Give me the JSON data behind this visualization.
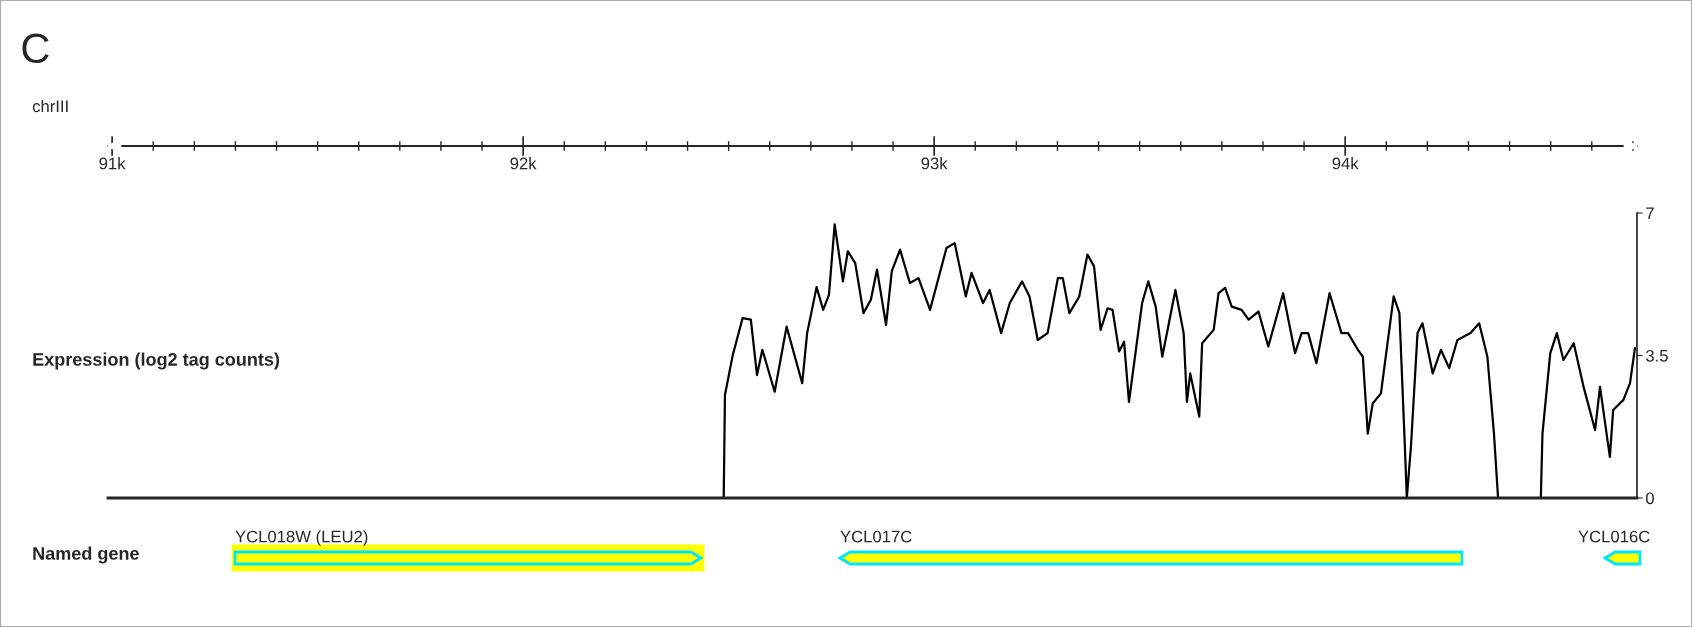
{
  "chart_data": {
    "type": "line",
    "title": "C",
    "xlabel": "chrIII",
    "ylabel": "Expression (log2 tag counts)",
    "xlim": [
      90990,
      94710
    ],
    "xticks": [
      {
        "value": 91000,
        "label": "91k"
      },
      {
        "value": 92000,
        "label": "92k"
      },
      {
        "value": 93000,
        "label": "93k"
      },
      {
        "value": 94000,
        "label": "94k"
      }
    ],
    "ylim": [
      0,
      7
    ],
    "yticks": [
      0,
      3.5,
      7
    ],
    "grid": false,
    "legend": false,
    "marker": "none",
    "line_style": "solid",
    "annotations": [
      "Named gene",
      "YCL018W (LEU2)",
      "YCL017C",
      "YCL016C"
    ],
    "series": [
      {
        "color": "#000000",
        "x": [
          92488,
          92491,
          92510,
          92534,
          92554,
          92569,
          92582,
          92612,
          92641,
          92679,
          92691,
          92714,
          92730,
          92744,
          92758,
          92778,
          92790,
          92808,
          92828,
          92846,
          92861,
          92883,
          92897,
          92917,
          92941,
          92962,
          92990,
          93030,
          93050,
          93077,
          93091,
          93119,
          93135,
          93163,
          93184,
          93214,
          93232,
          93252,
          93276,
          93301,
          93313,
          93329,
          93353,
          93373,
          93389,
          93405,
          93422,
          93434,
          93450,
          93462,
          93474,
          93506,
          93521,
          93539,
          93555,
          93587,
          93607,
          93615,
          93623,
          93645,
          93652,
          93680,
          93692,
          93708,
          93724,
          93748,
          93765,
          93789,
          93813,
          93849,
          93878,
          93894,
          93910,
          93930,
          93962,
          93991,
          94007,
          94031,
          94043,
          94055,
          94067,
          94087,
          94118,
          94132,
          94144,
          94150,
          94160,
          94176,
          94188,
          94213,
          94233,
          94253,
          94273,
          94305,
          94326,
          94346,
          94362,
          94372,
          94476,
          94480,
          94499,
          94515,
          94531,
          94556,
          94580,
          94608,
          94620,
          94644,
          94652,
          94677,
          94693,
          94705
        ],
        "values": [
          0,
          2.53,
          3.51,
          4.42,
          4.38,
          3.02,
          3.64,
          2.61,
          4.21,
          2.82,
          4.05,
          5.18,
          4.62,
          4.99,
          6.72,
          5.32,
          6.06,
          5.77,
          4.54,
          4.87,
          5.61,
          4.25,
          5.57,
          6.1,
          5.28,
          5.4,
          4.62,
          6.14,
          6.26,
          4.95,
          5.53,
          4.79,
          5.11,
          4.05,
          4.79,
          5.32,
          4.95,
          3.88,
          4.05,
          5.4,
          5.4,
          4.54,
          4.95,
          5.98,
          5.69,
          4.13,
          4.66,
          4.62,
          3.6,
          3.84,
          2.36,
          4.79,
          5.32,
          4.7,
          3.47,
          5.11,
          4.05,
          2.36,
          3.06,
          2.0,
          3.8,
          4.13,
          5.03,
          5.16,
          4.7,
          4.62,
          4.38,
          4.58,
          3.72,
          5.03,
          3.56,
          4.05,
          4.05,
          3.31,
          5.03,
          4.05,
          4.05,
          3.64,
          3.47,
          1.58,
          2.32,
          2.57,
          4.95,
          4.54,
          1.58,
          0,
          1.26,
          4.05,
          4.29,
          3.06,
          3.64,
          3.19,
          3.88,
          4.05,
          4.29,
          3.47,
          1.58,
          0,
          0,
          1.58,
          3.56,
          4.05,
          3.39,
          3.8,
          2.73,
          1.67,
          2.73,
          1.01,
          2.16,
          2.41,
          2.82,
          3.68
        ]
      }
    ]
  }
}
